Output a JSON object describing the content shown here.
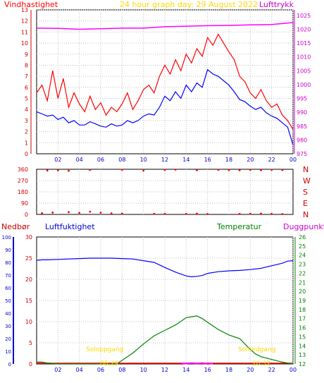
{
  "header": {
    "wind_label": "Vindhastighet",
    "title": "24 hour graph day:  29 August 2022",
    "pressure_label": "Lufttrykk"
  },
  "lower_header": {
    "precip_label": "Nedbør",
    "humidity_label": "Luftfuktighet",
    "temp_label": "Temperatur",
    "dew_label": "Duggpunkt"
  },
  "sun": {
    "sunrise_label": "Soloppgang",
    "sunset_label": "Solnedgang",
    "sunrise_time": "06:29",
    "sunset_time": "20:32"
  },
  "colors": {
    "wind": "#ff0000",
    "wind_avg": "#0000ff",
    "pressure": "#ff00ff",
    "humidity": "#0000ff",
    "temperature": "#008000",
    "dewpoint": "#ff00ff",
    "precip": "#ff0000",
    "title": "#ffd700",
    "grid": "#c0c0c0"
  },
  "chart_data": [
    {
      "type": "line",
      "name": "wind-pressure",
      "x_ticks": [
        "02",
        "04",
        "06",
        "08",
        "10",
        "12",
        "14",
        "16",
        "18",
        "20",
        "22",
        "00"
      ],
      "wind_axis": {
        "ticks": [
          "0",
          "1",
          "2",
          "3",
          "4",
          "5",
          "6",
          "7",
          "8",
          "9",
          "10",
          "11",
          "12",
          "13"
        ],
        "ylim": [
          0,
          13
        ]
      },
      "pressure_axis": {
        "ticks": [
          "975",
          "980",
          "985",
          "990",
          "995",
          "1000",
          "1005",
          "1010",
          "1015",
          "1020",
          "1025"
        ],
        "ylim": [
          975,
          1027
        ]
      },
      "series": [
        {
          "role": "wind_gust",
          "x": [
            0,
            0.5,
            1,
            1.5,
            2,
            2.5,
            3,
            3.5,
            4,
            4.5,
            5,
            5.5,
            6,
            6.5,
            7,
            7.5,
            8,
            8.5,
            9,
            9.5,
            10,
            10.5,
            11,
            11.5,
            12,
            12.5,
            13,
            13.5,
            14,
            14.5,
            15,
            15.5,
            16,
            16.5,
            17,
            17.5,
            18,
            18.5,
            19,
            19.5,
            20,
            20.5,
            21,
            21.5,
            22,
            22.5,
            23,
            23.5,
            24
          ],
          "y": [
            5.5,
            6.2,
            4.8,
            7.5,
            5.0,
            6.8,
            4.2,
            5.5,
            4.5,
            3.8,
            5.2,
            4.0,
            4.6,
            3.5,
            4.2,
            3.8,
            4.5,
            5.5,
            4.0,
            4.8,
            5.8,
            6.2,
            5.5,
            7.0,
            8.0,
            7.2,
            8.5,
            7.5,
            9.0,
            8.2,
            9.5,
            8.8,
            10.5,
            9.8,
            10.8,
            10.0,
            9.2,
            8.5,
            7.0,
            6.5,
            5.5,
            5.0,
            5.8,
            4.8,
            4.2,
            4.5,
            3.5,
            3.0,
            2.2
          ]
        },
        {
          "role": "wind_avg",
          "x": [
            0,
            0.5,
            1,
            1.5,
            2,
            2.5,
            3,
            3.5,
            4,
            4.5,
            5,
            5.5,
            6,
            6.5,
            7,
            7.5,
            8,
            8.5,
            9,
            9.5,
            10,
            10.5,
            11,
            11.5,
            12,
            12.5,
            13,
            13.5,
            14,
            14.5,
            15,
            15.5,
            16,
            16.5,
            17,
            17.5,
            18,
            18.5,
            19,
            19.5,
            20,
            20.5,
            21,
            21.5,
            22,
            22.5,
            23,
            23.5,
            24
          ],
          "y": [
            3.8,
            3.6,
            3.4,
            3.5,
            3.1,
            3.3,
            2.8,
            3.0,
            2.6,
            2.6,
            2.9,
            2.7,
            2.5,
            2.4,
            2.7,
            2.5,
            2.6,
            3.0,
            2.8,
            3.0,
            3.4,
            3.6,
            3.5,
            4.2,
            5.2,
            4.8,
            5.6,
            5.0,
            6.2,
            5.6,
            6.4,
            6.0,
            7.6,
            7.2,
            7.0,
            6.6,
            6.2,
            5.6,
            4.9,
            4.7,
            4.3,
            4.0,
            4.2,
            3.7,
            3.4,
            3.2,
            2.8,
            2.4,
            0.8
          ]
        },
        {
          "role": "pressure",
          "x": [
            0,
            2,
            4,
            6,
            8,
            10,
            12,
            14,
            16,
            18,
            20,
            22,
            24
          ],
          "y": [
            1020.4,
            1020.3,
            1020.0,
            1020.2,
            1020.4,
            1020.4,
            1020.9,
            1021.1,
            1021.3,
            1021.4,
            1021.6,
            1021.7,
            1022.4
          ]
        }
      ]
    },
    {
      "type": "scatter",
      "name": "wind-direction",
      "y_ticks": [
        "0",
        "90",
        "180",
        "270",
        "360"
      ],
      "compass_labels": [
        "N",
        "W",
        "S",
        "E",
        "N"
      ],
      "ylim": [
        0,
        360
      ]
    },
    {
      "type": "line",
      "name": "humidity-temperature",
      "x_ticks": [
        "02",
        "04",
        "06",
        "08",
        "10",
        "12",
        "14",
        "16",
        "18",
        "20",
        "22",
        "00"
      ],
      "precip_axis": {
        "ticks": [
          "0",
          "10",
          "20",
          "30",
          "40",
          "50",
          "60",
          "70",
          "80",
          "90",
          "100"
        ],
        "ylim": [
          0,
          100
        ]
      },
      "humidity_axis": {
        "ticks": [
          "0",
          "5",
          "10",
          "15",
          "20",
          "25",
          "30"
        ],
        "ylim": [
          0,
          30
        ]
      },
      "temp_axis": {
        "ticks": [
          "12",
          "13",
          "14",
          "15",
          "16",
          "17",
          "18",
          "19",
          "20",
          "21",
          "22",
          "23",
          "24",
          "25",
          "26"
        ],
        "ylim": [
          12,
          26
        ]
      },
      "series": [
        {
          "role": "humidity",
          "x": [
            0,
            0.5,
            1,
            2,
            3,
            4,
            5,
            6,
            7,
            8,
            9,
            10,
            11,
            12,
            13,
            14,
            14.5,
            15,
            15.5,
            16,
            17,
            18,
            19,
            20,
            21,
            22,
            23,
            23.5,
            24
          ],
          "y": [
            24.5,
            24.6,
            24.6,
            24.7,
            24.8,
            24.9,
            25.0,
            25.0,
            25.0,
            24.9,
            24.8,
            24.4,
            24.0,
            22.8,
            21.7,
            20.8,
            20.6,
            20.7,
            20.9,
            21.4,
            21.8,
            22.0,
            22.1,
            22.3,
            22.6,
            23.2,
            23.8,
            24.3,
            24.4
          ]
        },
        {
          "role": "temperature",
          "x": [
            0,
            0.5,
            1,
            2,
            3,
            4,
            5,
            6,
            7,
            7.5,
            8,
            9,
            10,
            11,
            12,
            13,
            14,
            14.5,
            15,
            15.5,
            16,
            17,
            18,
            19,
            20,
            20.5,
            21,
            22,
            23,
            24
          ],
          "y": [
            12.2,
            12.2,
            12.1,
            11.6,
            11.3,
            11.0,
            10.9,
            10.8,
            11.6,
            12.0,
            12.4,
            13.2,
            14.2,
            15.1,
            15.7,
            16.3,
            17.1,
            17.2,
            17.3,
            17.0,
            16.6,
            15.8,
            15.2,
            14.8,
            13.6,
            13.1,
            12.8,
            12.5,
            12.2,
            12.0
          ]
        },
        {
          "role": "dewpoint",
          "x": [
            13.5,
            14,
            14.5,
            15,
            15.5,
            16,
            16.5
          ],
          "y": [
            12.0,
            12.05,
            12.1,
            12.05,
            12.1,
            12.0,
            12.05
          ]
        }
      ]
    }
  ]
}
